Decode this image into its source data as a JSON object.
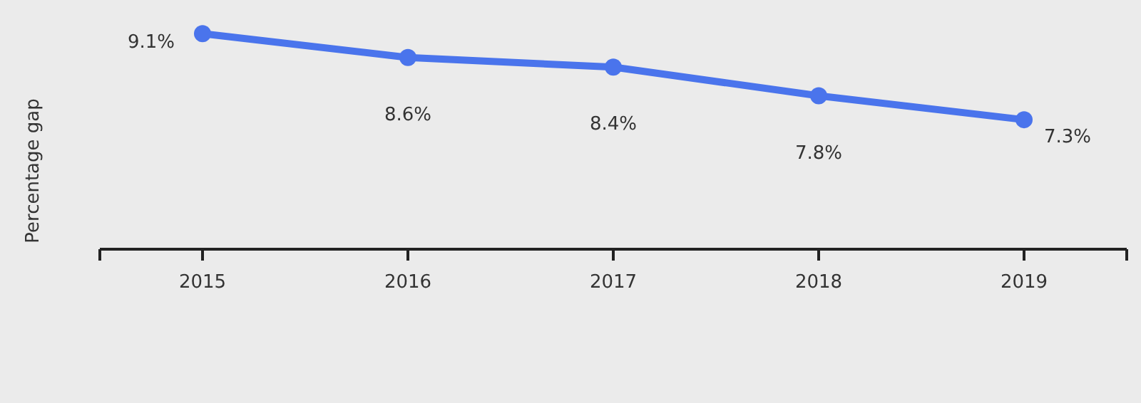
{
  "chart_data": {
    "type": "line",
    "ylabel": "Percentage gap",
    "categories": [
      "2015",
      "2016",
      "2017",
      "2018",
      "2019"
    ],
    "series": [
      {
        "color": "#4a74ec",
        "values": [
          9.1,
          8.6,
          8.4,
          7.8,
          7.3
        ],
        "value_labels": [
          "9.1%",
          "8.6%",
          "8.4%",
          "7.8%",
          "7.3%"
        ]
      }
    ],
    "marker": "circle",
    "grid": false,
    "legend": false
  }
}
